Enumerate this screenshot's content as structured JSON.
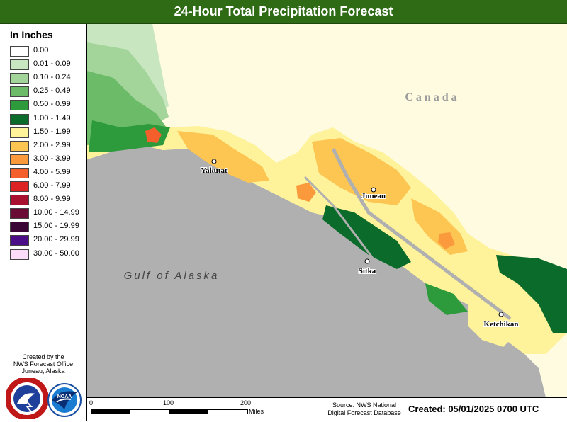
{
  "title": "24-Hour Total Precipitation Forecast",
  "legend": {
    "title": "In Inches",
    "items": [
      {
        "label": "0.00",
        "color": "#ffffff"
      },
      {
        "label": "0.01 - 0.09",
        "color": "#c8e6c0"
      },
      {
        "label": "0.10 - 0.24",
        "color": "#a3d49a"
      },
      {
        "label": "0.25 - 0.49",
        "color": "#6cbb68"
      },
      {
        "label": "0.50 - 0.99",
        "color": "#2d9a3c"
      },
      {
        "label": "1.00 - 1.49",
        "color": "#0b6b2a"
      },
      {
        "label": "1.50 - 1.99",
        "color": "#fef39a"
      },
      {
        "label": "2.00 - 2.99",
        "color": "#fdc552"
      },
      {
        "label": "3.00 - 3.99",
        "color": "#fb9a3c"
      },
      {
        "label": "4.00 - 5.99",
        "color": "#f45f2c"
      },
      {
        "label": "6.00 - 7.99",
        "color": "#dc2222"
      },
      {
        "label": "8.00 - 9.99",
        "color": "#a81030"
      },
      {
        "label": "10.00 - 14.99",
        "color": "#6b0a34"
      },
      {
        "label": "15.00 - 19.99",
        "color": "#3a0638"
      },
      {
        "label": "20.00 - 29.99",
        "color": "#4b0e86"
      },
      {
        "label": "30.00 - 50.00",
        "color": "#fcdcf8"
      }
    ]
  },
  "credit": {
    "line1": "Created by the",
    "line2": "NWS Forecast Office",
    "line3": "Juneau, Alaska"
  },
  "logos": {
    "nws": {
      "icon": "nws-logo",
      "text": "NATIONAL WEATHER SERVICE"
    },
    "noaa": {
      "icon": "noaa-logo",
      "text": "NOAA"
    }
  },
  "map": {
    "country_label": "Canada",
    "water_label": "Gulf of Alaska",
    "cities": [
      "Yakutat",
      "Juneau",
      "Sitka",
      "Ketchikan"
    ],
    "colors": {
      "ocean": "#b0b0b0",
      "canada": "#fefbe1"
    }
  },
  "scale": {
    "ticks": [
      "0",
      "100",
      "200"
    ],
    "units": "Miles"
  },
  "source": {
    "line1": "Source: NWS National",
    "line2": "Digital Forecast Database"
  },
  "created": "Created: 05/01/2025 0700 UTC"
}
